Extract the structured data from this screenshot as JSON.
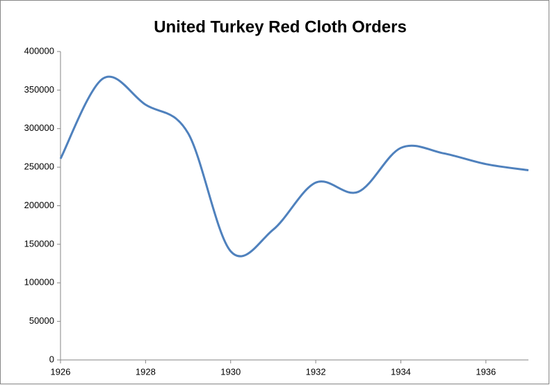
{
  "chart_data": {
    "type": "line",
    "title": "United Turkey Red Cloth Orders",
    "x": [
      1926,
      1927,
      1928,
      1929,
      1930,
      1931,
      1932,
      1933,
      1934,
      1935,
      1936,
      1937
    ],
    "series": [
      {
        "color": "#4f81bd",
        "values": [
          261000,
          365000,
          331000,
          294000,
          141000,
          169000,
          230000,
          218000,
          275000,
          268000,
          254000,
          246000
        ]
      }
    ],
    "xlim": [
      1926,
      1937
    ],
    "xticks": [
      1926,
      1928,
      1930,
      1932,
      1934,
      1936
    ],
    "ylim": [
      0,
      400000
    ],
    "yticks": [
      0,
      50000,
      100000,
      150000,
      200000,
      250000,
      300000,
      350000,
      400000
    ],
    "smooth": true,
    "grid": false
  }
}
